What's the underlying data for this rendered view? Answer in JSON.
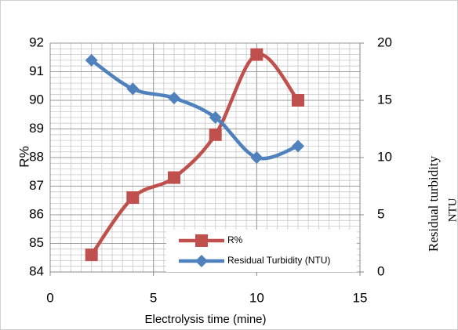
{
  "chart_data": {
    "type": "line",
    "xlabel": "Electrolysis  time (mine)",
    "ylabel": "R%",
    "y2label": [
      "Residual turbidity",
      "NTU"
    ],
    "x": [
      2,
      4,
      6,
      8,
      10,
      12
    ],
    "series": [
      {
        "name": "R%",
        "color": "#c0504d",
        "marker": "square",
        "values": [
          84.6,
          86.6,
          87.3,
          88.8,
          91.6,
          90.0
        ]
      },
      {
        "name": "Residual Turbidity (NTU)",
        "color": "#4f81bd",
        "marker": "diamond",
        "axis": "y2",
        "values": [
          18.5,
          16.0,
          15.2,
          13.5,
          10.0,
          11.0
        ]
      }
    ],
    "xlim": [
      0,
      15
    ],
    "xticks": [
      0,
      5,
      10,
      15
    ],
    "ylim": [
      84,
      92
    ],
    "yticks": [
      84,
      85,
      86,
      87,
      88,
      89,
      90,
      91,
      92
    ],
    "y2lim": [
      0,
      20
    ],
    "y2ticks": [
      0,
      5,
      10,
      15,
      20
    ],
    "grid": true,
    "minor_grid": {
      "x": 0.5,
      "y": 0.2
    },
    "legend": "lower right"
  }
}
